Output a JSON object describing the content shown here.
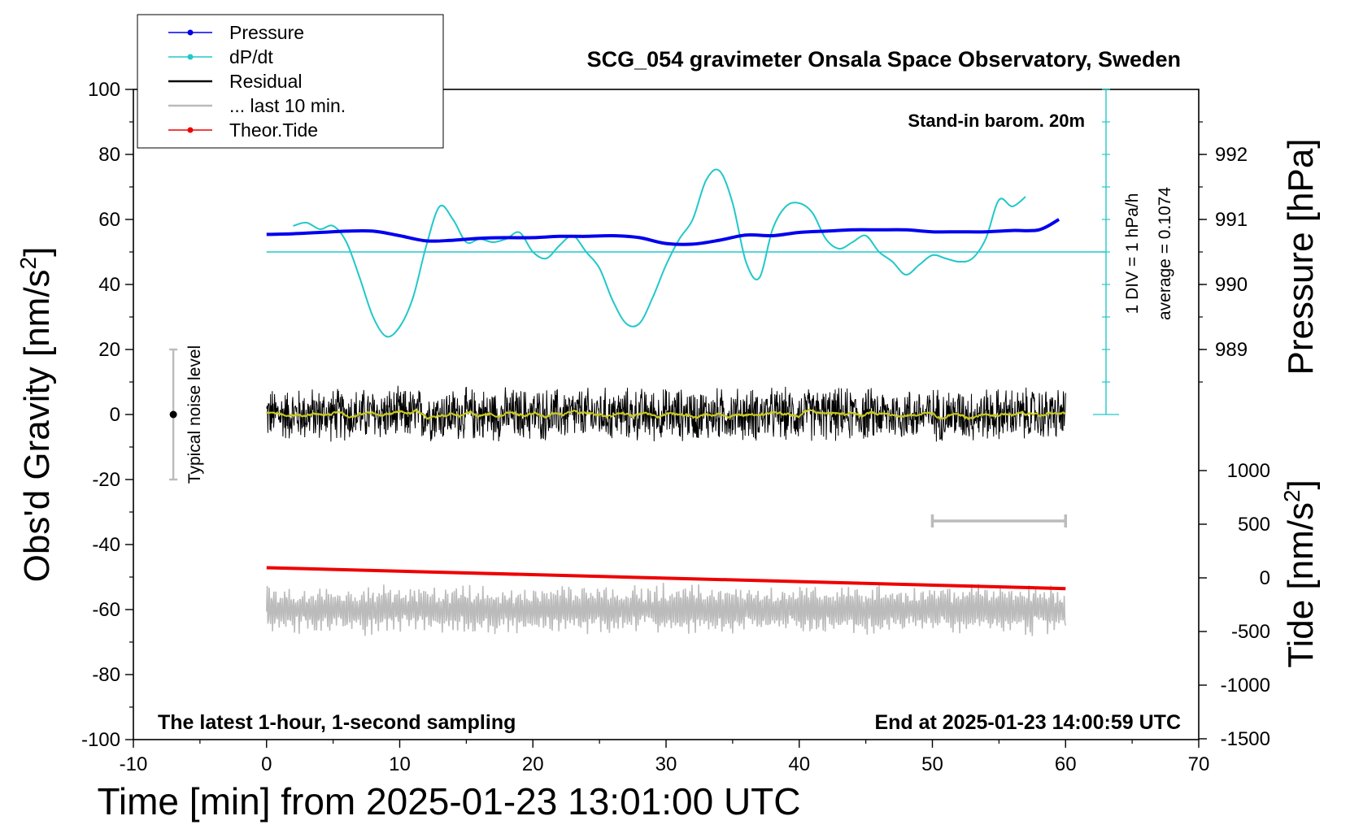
{
  "chart_data": {
    "type": "line",
    "title": "SCG_054 gravimeter Onsala Space Observatory, Sweden",
    "xlabel": "Time [min] from 2025-01-23 13:01:00 UTC",
    "ylabel": "Obs'd Gravity [nm/s",
    "ylabel_sup": "2",
    "ylabel_end": "]",
    "y2label": "Pressure [hPa]",
    "y3label": "Tide [nm/s",
    "y3label_sup": "2",
    "y3label_end": "]",
    "xlim": [
      -10,
      70
    ],
    "ylim": [
      -100,
      100
    ],
    "x_ticks": [
      -10,
      0,
      10,
      20,
      30,
      40,
      50,
      60,
      70
    ],
    "y_ticks": [
      -100,
      -80,
      -60,
      -40,
      -20,
      0,
      20,
      40,
      60,
      80,
      100
    ],
    "pressure_ticks": [
      989,
      990,
      991,
      992
    ],
    "tide_ticks": [
      1000,
      500,
      0,
      -500,
      -1000,
      -1500
    ],
    "annotations": {
      "top_right": "Stand-in barom. 20m",
      "bottom_left": "The latest 1-hour, 1-second sampling",
      "bottom_right": "End at 2025-01-23 14:00:59 UTC",
      "div_label": "1 DIV = 1 hPa/h",
      "average_label": "average = 0.1074",
      "noise_label": "Typical noise level"
    },
    "legend": [
      "Pressure",
      "dP/dt",
      "Residual",
      "... last 10 min.",
      "Theor.Tide"
    ],
    "colors": {
      "pressure": "#0000ee",
      "dpdt": "#22c8c8",
      "residual": "#000000",
      "residual_smooth": "#c8c820",
      "last10": "#bbbbbb",
      "tide": "#ee0000"
    },
    "series": [
      {
        "name": "Pressure",
        "unit": "hPa",
        "x": [
          0,
          2,
          4,
          6,
          8,
          10,
          12,
          14,
          16,
          18,
          20,
          22,
          24,
          26,
          28,
          30,
          32,
          34,
          36,
          38,
          40,
          42,
          44,
          46,
          48,
          50,
          52,
          54,
          56,
          58,
          59.5
        ],
        "values": [
          990.77,
          990.78,
          990.8,
          990.82,
          990.82,
          990.75,
          990.67,
          990.68,
          990.71,
          990.72,
          990.72,
          990.74,
          990.74,
          990.75,
          990.72,
          990.63,
          990.62,
          990.68,
          990.76,
          990.75,
          990.8,
          990.82,
          990.84,
          990.84,
          990.84,
          990.81,
          990.81,
          990.81,
          990.83,
          990.84,
          991.0
        ]
      },
      {
        "name": "dP/dt",
        "unit": "nm/s2 display",
        "x": [
          2,
          3,
          4,
          5,
          6,
          7,
          8,
          9,
          10,
          11,
          12,
          13,
          14,
          15,
          16,
          17,
          18,
          19,
          20,
          21,
          22,
          23,
          24,
          25,
          26,
          27,
          28,
          29,
          30,
          31,
          32,
          33,
          34,
          35,
          36,
          37,
          38,
          39,
          40,
          41,
          42,
          43,
          44,
          45,
          46,
          47,
          48,
          49,
          50,
          51,
          52,
          53,
          54,
          55,
          56,
          57
        ],
        "values": [
          58,
          59,
          57,
          58,
          53,
          42,
          30,
          24,
          27,
          36,
          52,
          64,
          60,
          53,
          54,
          53,
          54,
          56,
          50,
          48,
          52,
          55,
          50,
          45,
          35,
          28,
          28,
          36,
          46,
          54,
          60,
          72,
          75,
          65,
          47,
          42,
          57,
          64,
          65,
          62,
          54,
          51,
          53,
          55,
          50,
          47,
          43,
          46,
          49,
          48,
          47,
          48,
          54,
          66,
          64,
          67
        ]
      },
      {
        "name": "Residual",
        "unit": "nm/s2",
        "x_range": [
          0,
          60
        ],
        "amplitude": 8,
        "mean": 0
      },
      {
        "name": "... last 10 min.",
        "unit": "nm/s2",
        "x_range": [
          0,
          60
        ],
        "mean": -60,
        "amplitude": 5
      },
      {
        "name": "Theor.Tide",
        "unit": "nm/s2",
        "x": [
          0,
          60
        ],
        "values": [
          95,
          -100
        ]
      }
    ]
  }
}
